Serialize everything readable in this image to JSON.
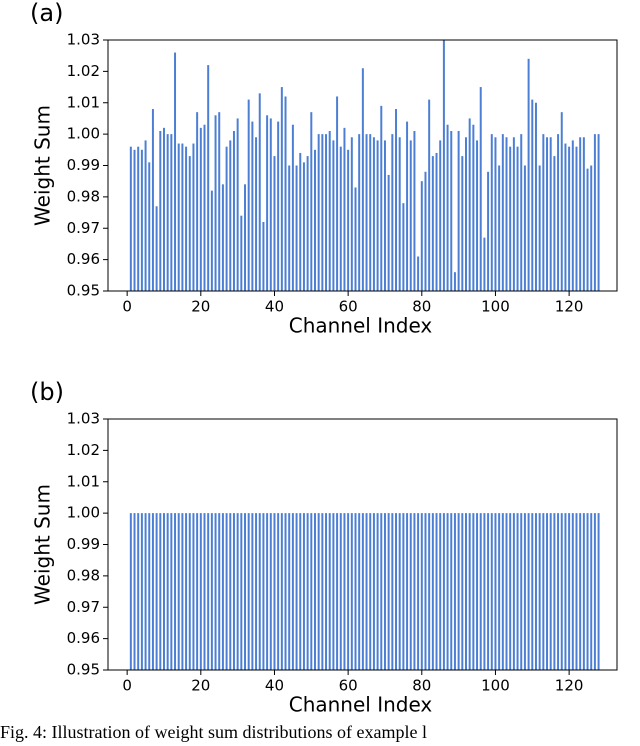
{
  "caption": "Fig. 4: Illustration of weight sum distributions of example l",
  "chart_data": [
    {
      "type": "bar",
      "panel_label": "(a)",
      "xlabel": "Channel Index",
      "ylabel": "Weight Sum",
      "color": "#4c7fd4",
      "x": [
        1,
        2,
        3,
        4,
        5,
        6,
        7,
        8,
        9,
        10,
        11,
        12,
        13,
        14,
        15,
        16,
        17,
        18,
        19,
        20,
        21,
        22,
        23,
        24,
        25,
        26,
        27,
        28,
        29,
        30,
        31,
        32,
        33,
        34,
        35,
        36,
        37,
        38,
        39,
        40,
        41,
        42,
        43,
        44,
        45,
        46,
        47,
        48,
        49,
        50,
        51,
        52,
        53,
        54,
        55,
        56,
        57,
        58,
        59,
        60,
        61,
        62,
        63,
        64,
        65,
        66,
        67,
        68,
        69,
        70,
        71,
        72,
        73,
        74,
        75,
        76,
        77,
        78,
        79,
        80,
        81,
        82,
        83,
        84,
        85,
        86,
        87,
        88,
        89,
        90,
        91,
        92,
        93,
        94,
        95,
        96,
        97,
        98,
        99,
        100,
        101,
        102,
        103,
        104,
        105,
        106,
        107,
        108,
        109,
        110,
        111,
        112,
        113,
        114,
        115,
        116,
        117,
        118,
        119,
        120,
        121,
        122,
        123,
        124,
        125,
        126,
        127,
        128
      ],
      "values": [
        0.996,
        0.995,
        0.996,
        0.995,
        0.998,
        0.991,
        1.008,
        0.977,
        1.001,
        1.002,
        1.0,
        1.0,
        1.026,
        0.997,
        0.997,
        0.996,
        0.993,
        0.997,
        1.007,
        1.002,
        1.003,
        1.022,
        0.982,
        1.006,
        1.007,
        0.984,
        0.996,
        0.998,
        1.001,
        1.005,
        0.974,
        0.984,
        1.011,
        1.004,
        0.999,
        1.013,
        0.972,
        1.006,
        1.005,
        0.993,
        1.004,
        1.015,
        1.012,
        0.99,
        1.003,
        0.99,
        0.994,
        0.991,
        0.993,
        1.007,
        0.995,
        1.0,
        1.0,
        1.0,
        1.001,
        0.998,
        1.012,
        0.996,
        1.002,
        0.995,
        0.999,
        0.983,
        1.0,
        1.021,
        1.0,
        1.0,
        0.999,
        0.998,
        1.009,
        0.998,
        0.987,
        1.0,
        1.008,
        0.999,
        0.978,
        1.004,
        0.998,
        1.001,
        0.961,
        0.985,
        0.988,
        1.011,
        0.993,
        0.994,
        0.998,
        1.03,
        1.003,
        1.001,
        0.956,
        1.001,
        0.993,
        0.999,
        1.005,
        1.003,
        0.998,
        1.015,
        0.967,
        0.988,
        1.0,
        0.999,
        0.99,
        1.0,
        0.999,
        0.996,
        0.999,
        0.996,
        1.0,
        0.99,
        1.024,
        1.011,
        1.01,
        0.99,
        1.0,
        0.999,
        0.999,
        0.993,
        1.0,
        1.007,
        0.997,
        0.996,
        0.998,
        0.996,
        0.999,
        0.999,
        0.989,
        0.99,
        1.0,
        1.0
      ],
      "xlim": [
        -5.2,
        133
      ],
      "xticks": [
        0,
        20,
        40,
        60,
        80,
        100,
        120
      ],
      "ylim": [
        0.95,
        1.03
      ],
      "yticks": [
        0.95,
        0.96,
        0.97,
        0.98,
        0.99,
        {
          "value": 1,
          "label": "1.00"
        },
        1.01,
        1.02,
        1.03
      ]
    },
    {
      "type": "bar",
      "panel_label": "(b)",
      "xlabel": "Channel Index",
      "ylabel": "Weight Sum",
      "color": "#4c7fd4",
      "x": [
        1,
        2,
        3,
        4,
        5,
        6,
        7,
        8,
        9,
        10,
        11,
        12,
        13,
        14,
        15,
        16,
        17,
        18,
        19,
        20,
        21,
        22,
        23,
        24,
        25,
        26,
        27,
        28,
        29,
        30,
        31,
        32,
        33,
        34,
        35,
        36,
        37,
        38,
        39,
        40,
        41,
        42,
        43,
        44,
        45,
        46,
        47,
        48,
        49,
        50,
        51,
        52,
        53,
        54,
        55,
        56,
        57,
        58,
        59,
        60,
        61,
        62,
        63,
        64,
        65,
        66,
        67,
        68,
        69,
        70,
        71,
        72,
        73,
        74,
        75,
        76,
        77,
        78,
        79,
        80,
        81,
        82,
        83,
        84,
        85,
        86,
        87,
        88,
        89,
        90,
        91,
        92,
        93,
        94,
        95,
        96,
        97,
        98,
        99,
        100,
        101,
        102,
        103,
        104,
        105,
        106,
        107,
        108,
        109,
        110,
        111,
        112,
        113,
        114,
        115,
        116,
        117,
        118,
        119,
        120,
        121,
        122,
        123,
        124,
        125,
        126,
        127,
        128
      ],
      "values": [
        1,
        1,
        1,
        1,
        1,
        1,
        1,
        1,
        1,
        1,
        1,
        1,
        1,
        1,
        1,
        1,
        1,
        1,
        1,
        1,
        1,
        1,
        1,
        1,
        1,
        1,
        1,
        1,
        1,
        1,
        1,
        1,
        1,
        1,
        1,
        1,
        1,
        1,
        1,
        1,
        1,
        1,
        1,
        1,
        1,
        1,
        1,
        1,
        1,
        1,
        1,
        1,
        1,
        1,
        1,
        1,
        1,
        1,
        1,
        1,
        1,
        1,
        1,
        1,
        1,
        1,
        1,
        1,
        1,
        1,
        1,
        1,
        1,
        1,
        1,
        1,
        1,
        1,
        1,
        1,
        1,
        1,
        1,
        1,
        1,
        1,
        1,
        1,
        1,
        1,
        1,
        1,
        1,
        1,
        1,
        1,
        1,
        1,
        1,
        1,
        1,
        1,
        1,
        1,
        1,
        1,
        1,
        1,
        1,
        1,
        1,
        1,
        1,
        1,
        1,
        1,
        1,
        1,
        1,
        1,
        1,
        1,
        1,
        1,
        1,
        1,
        1,
        1
      ],
      "xlim": [
        -5.2,
        133
      ],
      "xticks": [
        0,
        20,
        40,
        60,
        80,
        100,
        120
      ],
      "ylim": [
        0.95,
        1.03
      ],
      "yticks": [
        0.95,
        0.96,
        0.97,
        0.98,
        0.99,
        {
          "value": 1,
          "label": "1.00"
        },
        1.01,
        1.02,
        1.03
      ]
    }
  ]
}
